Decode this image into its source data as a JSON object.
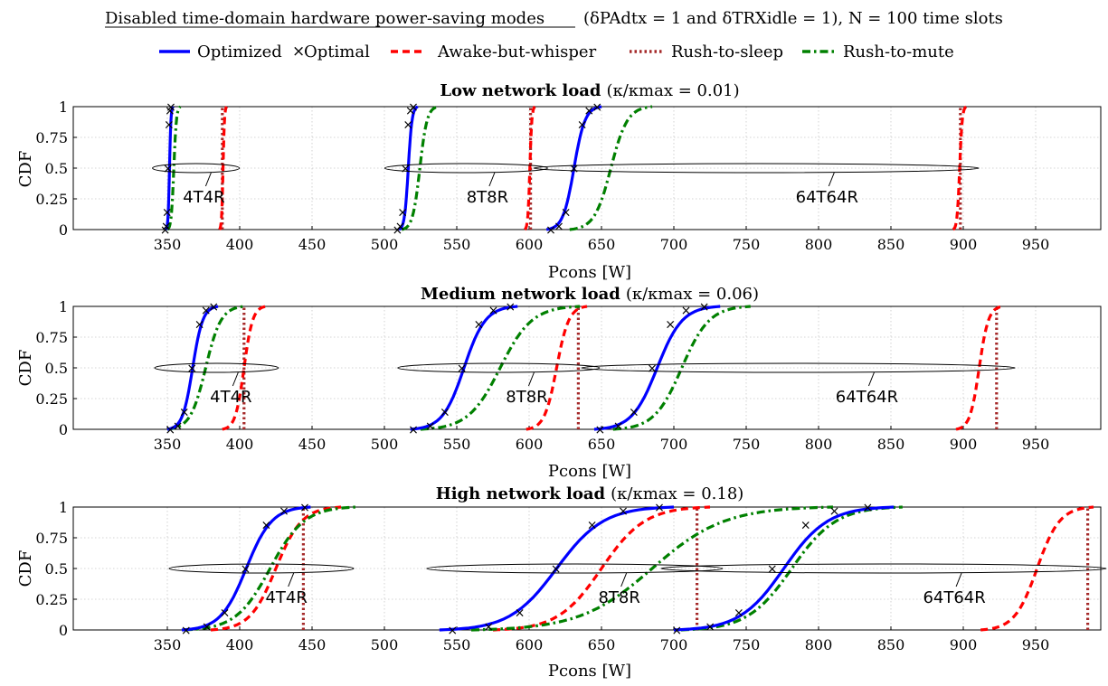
{
  "header": {
    "title_main": "Disabled time-domain hardware power-saving modes",
    "title_params": "(δPAdtx = 1 and δTRXidle = 1), N = 100 time slots"
  },
  "legend": [
    {
      "name": "Optimized",
      "color": "#0000ff",
      "style": "solid"
    },
    {
      "name": "Optimal",
      "color": "#000000",
      "style": "marker-x"
    },
    {
      "name": "Awake-but-whisper",
      "color": "#ff0000",
      "style": "dashed"
    },
    {
      "name": "Rush-to-sleep",
      "color": "#a52a2a",
      "style": "dotted"
    },
    {
      "name": "Rush-to-mute",
      "color": "#008000",
      "style": "dashdot"
    }
  ],
  "chart_data": [
    {
      "type": "line",
      "title_bold": "Low network load",
      "title_param": "(κ/κmax = 0.01)",
      "xlabel": "Pcons [W]",
      "ylabel": "CDF",
      "xlim": [
        285,
        995
      ],
      "ylim": [
        0,
        1
      ],
      "xticks": [
        350,
        400,
        450,
        500,
        550,
        600,
        650,
        700,
        750,
        800,
        850,
        900,
        950
      ],
      "yticks": [
        "0",
        "0.25",
        "0.5",
        "0.75",
        "1"
      ],
      "grid": true,
      "groups": [
        {
          "label": "4T4R",
          "optimized": {
            "start": 349,
            "end": 354
          },
          "optimal": {
            "start": 348.5,
            "end": 352.5
          },
          "awake_but_whisper": {
            "start": 386,
            "end": 391
          },
          "rush_to_sleep": {
            "x": 388
          },
          "rush_to_mute": {
            "start": 350,
            "end": 359
          }
        },
        {
          "label": "8T8R",
          "optimized": {
            "start": 510,
            "end": 523
          },
          "optimal": {
            "start": 509,
            "end": 520
          },
          "awake_but_whisper": {
            "start": 597,
            "end": 604
          },
          "rush_to_sleep": {
            "x": 601
          },
          "rush_to_mute": {
            "start": 512,
            "end": 537
          }
        },
        {
          "label": "64T64R",
          "optimized": {
            "start": 612,
            "end": 650
          },
          "optimal": {
            "start": 615,
            "end": 647
          },
          "awake_but_whisper": {
            "start": 893,
            "end": 902
          },
          "rush_to_sleep": {
            "x": 898
          },
          "rush_to_mute": {
            "start": 628,
            "end": 685
          }
        }
      ]
    },
    {
      "type": "line",
      "title_bold": "Medium network load",
      "title_param": "(κ/κmax = 0.06)",
      "xlabel": "Pcons [W]",
      "ylabel": "CDF",
      "xlim": [
        285,
        995
      ],
      "ylim": [
        0,
        1
      ],
      "xticks": [
        350,
        400,
        450,
        500,
        550,
        600,
        650,
        700,
        750,
        800,
        850,
        900,
        950
      ],
      "yticks": [
        "0",
        "0.25",
        "0.5",
        "0.75",
        "1"
      ],
      "grid": true,
      "groups": [
        {
          "label": "4T4R",
          "optimized": {
            "start": 350,
            "end": 385
          },
          "optimal": {
            "start": 352,
            "end": 382
          },
          "awake_but_whisper": {
            "start": 388,
            "end": 418
          },
          "rush_to_sleep": {
            "x": 403
          },
          "rush_to_mute": {
            "start": 350,
            "end": 403
          }
        },
        {
          "label": "8T8R",
          "optimized": {
            "start": 518,
            "end": 592
          },
          "optimal": {
            "start": 520,
            "end": 587
          },
          "awake_but_whisper": {
            "start": 598,
            "end": 640
          },
          "rush_to_sleep": {
            "x": 634
          },
          "rush_to_mute": {
            "start": 525,
            "end": 635
          }
        },
        {
          "label": "64T64R",
          "optimized": {
            "start": 645,
            "end": 732
          },
          "optimal": {
            "start": 649,
            "end": 721
          },
          "awake_but_whisper": {
            "start": 895,
            "end": 927
          },
          "rush_to_sleep": {
            "x": 923
          },
          "rush_to_mute": {
            "start": 658,
            "end": 753
          }
        }
      ]
    },
    {
      "type": "line",
      "title_bold": "High network load",
      "title_param": "(κ/κmax = 0.18)",
      "xlabel": "Pcons [W]",
      "ylabel": "CDF",
      "xlim": [
        285,
        995
      ],
      "ylim": [
        0,
        1
      ],
      "xticks": [
        350,
        400,
        450,
        500,
        550,
        600,
        650,
        700,
        750,
        800,
        850,
        900,
        950
      ],
      "yticks": [
        "0",
        "0.25",
        "0.5",
        "0.75",
        "1"
      ],
      "grid": true,
      "groups": [
        {
          "label": "4T4R",
          "optimized": {
            "start": 360,
            "end": 449
          },
          "optimal": {
            "start": 363,
            "end": 445
          },
          "awake_but_whisper": {
            "start": 380,
            "end": 470
          },
          "rush_to_sleep": {
            "x": 444
          },
          "rush_to_mute": {
            "start": 362,
            "end": 480
          }
        },
        {
          "label": "8T8R",
          "optimized": {
            "start": 538,
            "end": 700
          },
          "optimal": {
            "start": 547,
            "end": 690
          },
          "awake_but_whisper": {
            "start": 575,
            "end": 725
          },
          "rush_to_sleep": {
            "x": 716
          },
          "rush_to_mute": {
            "start": 560,
            "end": 810
          }
        },
        {
          "label": "64T64R",
          "optimized": {
            "start": 700,
            "end": 852
          },
          "optimal": {
            "start": 702,
            "end": 834
          },
          "awake_but_whisper": {
            "start": 912,
            "end": 990
          },
          "rush_to_sleep": {
            "x": 986
          },
          "rush_to_mute": {
            "start": 705,
            "end": 858
          }
        }
      ]
    }
  ]
}
